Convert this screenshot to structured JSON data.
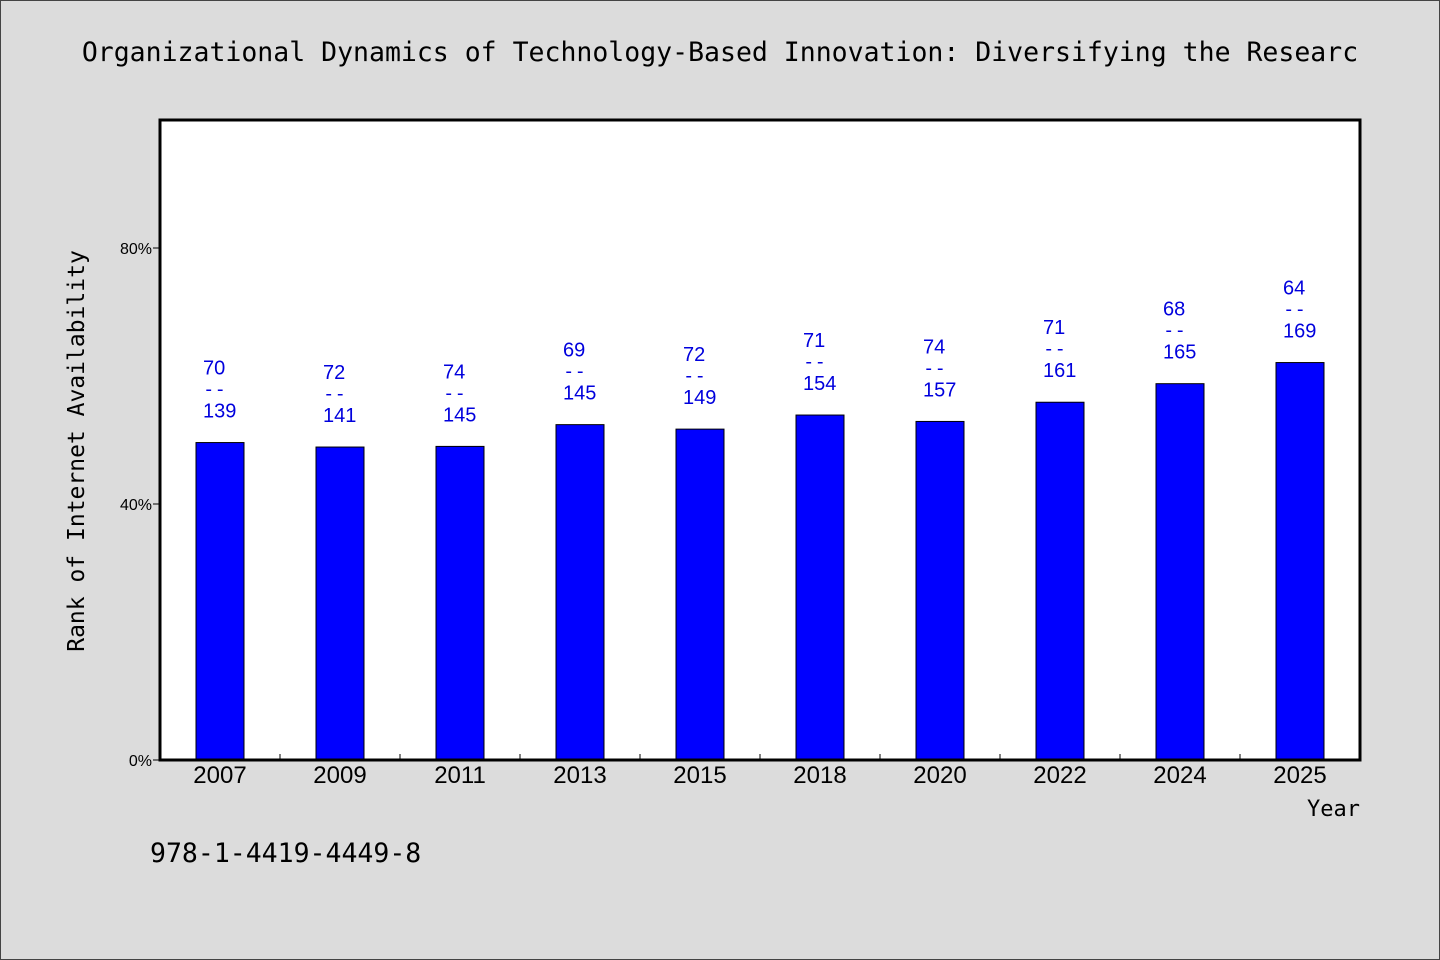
{
  "chart_data": {
    "type": "bar",
    "title": "Organizational Dynamics of Technology-Based Innovation: Diversifying the Researc",
    "xlabel": "Year",
    "ylabel": "Rank of Internet Availability",
    "categories": [
      "2007",
      "2009",
      "2011",
      "2013",
      "2015",
      "2018",
      "2020",
      "2022",
      "2024",
      "2025"
    ],
    "values": [
      49.6,
      48.9,
      49.0,
      52.4,
      51.7,
      53.9,
      52.9,
      55.9,
      58.8,
      62.1
    ],
    "data_labels": [
      {
        "rank": "70",
        "total": "139"
      },
      {
        "rank": "72",
        "total": "141"
      },
      {
        "rank": "74",
        "total": "145"
      },
      {
        "rank": "69",
        "total": "145"
      },
      {
        "rank": "72",
        "total": "149"
      },
      {
        "rank": "71",
        "total": "154"
      },
      {
        "rank": "74",
        "total": "157"
      },
      {
        "rank": "71",
        "total": "161"
      },
      {
        "rank": "68",
        "total": "165"
      },
      {
        "rank": "64",
        "total": "169"
      }
    ],
    "label_separator": "--",
    "ylim": [
      0,
      100
    ],
    "yticks": [
      0,
      40,
      80
    ],
    "ytick_labels": [
      "0%",
      "40%",
      "80%"
    ],
    "grid": false,
    "legend": "none",
    "colors": {
      "background": "#dcdcdc",
      "plot_background": "#ffffff",
      "bar": "#0000ff",
      "bar_edge": "#000000",
      "data_label": "#0000dd"
    }
  },
  "footer": {
    "text": "978-1-4419-4449-8"
  }
}
